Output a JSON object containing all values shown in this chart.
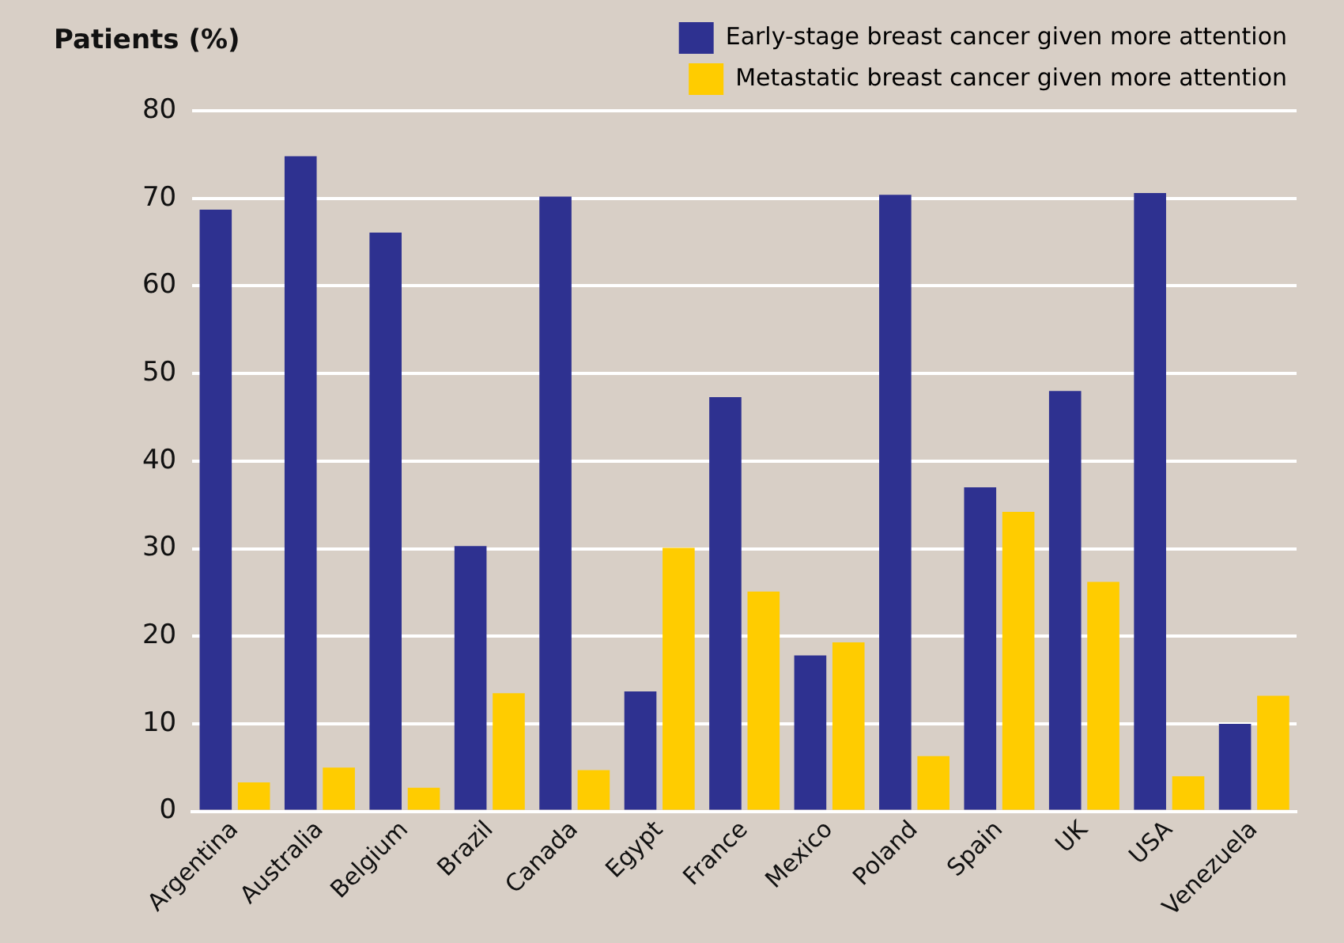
{
  "chart_data": {
    "type": "bar",
    "ylabel": "Patients (%)",
    "categories": [
      "Argentina",
      "Australia",
      "Belgium",
      "Brazil",
      "Canada",
      "Egypt",
      "France",
      "Mexico",
      "Poland",
      "Spain",
      "UK",
      "USA",
      "Venezuela"
    ],
    "series": [
      {
        "name": "Early-stage breast cancer given more attention",
        "color": "#2e3190",
        "values": [
          68.7,
          74.8,
          66.1,
          30.3,
          70.2,
          13.7,
          47.3,
          17.8,
          70.4,
          37.0,
          48.0,
          70.6,
          10.0
        ]
      },
      {
        "name": "Metastatic breast cancer given more attention",
        "color": "#ffcc00",
        "values": [
          3.3,
          5.0,
          2.7,
          13.5,
          4.7,
          30.1,
          25.1,
          19.3,
          6.3,
          34.2,
          26.2,
          4.0,
          13.2
        ]
      }
    ],
    "ylim": [
      0,
      80
    ],
    "yticks": [
      0,
      10,
      20,
      30,
      40,
      50,
      60,
      70,
      80
    ],
    "grid": "y",
    "legend": "top right"
  }
}
